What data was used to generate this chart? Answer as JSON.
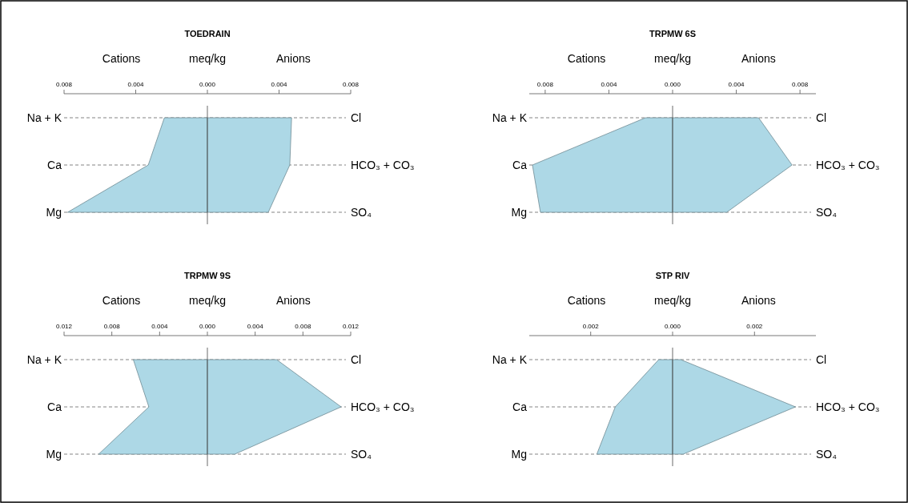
{
  "chart_data": [
    {
      "type": "area",
      "orientation": "horizontal",
      "title": "TOEDRAIN",
      "xlabel": "meq/kg",
      "annotations": [
        "Cations",
        "Anions"
      ],
      "categories": [
        "Na + K",
        "Ca",
        "Mg"
      ],
      "y2_categories": [
        "Cl",
        "HCO₃ + CO₃",
        "SO₄"
      ],
      "xlim": [
        -0.008,
        0.008
      ],
      "xticks": [
        {
          "value": -0.008,
          "label": "0.008"
        },
        {
          "value": -0.004,
          "label": "0.004"
        },
        "0.000",
        0.004,
        0.008
      ],
      "grid": "y",
      "ref_lines": [
        {
          "axis": "x",
          "value": 0
        }
      ],
      "series": [
        {
          "color": "#add8e6",
          "values": [
            -0.0024,
            -0.0033,
            -0.0078
          ]
        },
        {
          "color": "#add8e6",
          "values": [
            0.0047,
            0.0046,
            0.0034
          ]
        }
      ]
    },
    {
      "type": "area",
      "orientation": "horizontal",
      "title": "TRPMW 6S",
      "xlabel": "meq/kg",
      "annotations": [
        "Cations",
        "Anions"
      ],
      "categories": [
        "Na + K",
        "Ca",
        "Mg"
      ],
      "y2_categories": [
        "Cl",
        "HCO₃ + CO₃",
        "SO₄"
      ],
      "xlim": [
        -0.009,
        0.009
      ],
      "xticks": [
        {
          "value": -0.008,
          "label": "0.008"
        },
        {
          "value": -0.004,
          "label": "0.004"
        },
        "0.000",
        0.004,
        0.008
      ],
      "grid": "y",
      "ref_lines": [
        {
          "axis": "x",
          "value": 0
        }
      ],
      "series": [
        {
          "color": "#add8e6",
          "values": [
            -0.0017,
            -0.0088,
            -0.0083
          ]
        },
        {
          "color": "#add8e6",
          "values": [
            0.0054,
            0.0075,
            0.0034
          ]
        }
      ]
    },
    {
      "type": "area",
      "orientation": "horizontal",
      "title": "TRPMW 9S",
      "xlabel": "meq/kg",
      "annotations": [
        "Cations",
        "Anions"
      ],
      "categories": [
        "Na + K",
        "Ca",
        "Mg"
      ],
      "y2_categories": [
        "Cl",
        "HCO₃ + CO₃",
        "SO₄"
      ],
      "xlim": [
        -0.012,
        0.012
      ],
      "xticks": [
        {
          "value": -0.012,
          "label": "0.012"
        },
        {
          "value": -0.008,
          "label": "0.008"
        },
        {
          "value": -0.004,
          "label": "0.004"
        },
        "0.000",
        0.004,
        0.008,
        0.012
      ],
      "grid": "y",
      "ref_lines": [
        {
          "axis": "x",
          "value": 0
        }
      ],
      "series": [
        {
          "color": "#add8e6",
          "values": [
            -0.0062,
            -0.0049,
            -0.0091
          ]
        },
        {
          "color": "#add8e6",
          "values": [
            0.0058,
            0.0112,
            0.0023
          ]
        }
      ]
    },
    {
      "type": "area",
      "orientation": "horizontal",
      "title": "STP RIV",
      "xlabel": "meq/kg",
      "annotations": [
        "Cations",
        "Anions"
      ],
      "categories": [
        "Na + K",
        "Ca",
        "Mg"
      ],
      "y2_categories": [
        "Cl",
        "HCO₃ + CO₃",
        "SO₄"
      ],
      "xlim": [
        -0.0035,
        0.0035
      ],
      "xticks": [
        {
          "value": -0.002,
          "label": "0.002"
        },
        "0.000",
        0.002
      ],
      "grid": "y",
      "ref_lines": [
        {
          "axis": "x",
          "value": 0
        }
      ],
      "series": [
        {
          "color": "#add8e6",
          "values": [
            -0.00034,
            -0.0014,
            -0.00185
          ]
        },
        {
          "color": "#add8e6",
          "values": [
            0.0002,
            0.003,
            0.00026
          ]
        }
      ]
    }
  ]
}
